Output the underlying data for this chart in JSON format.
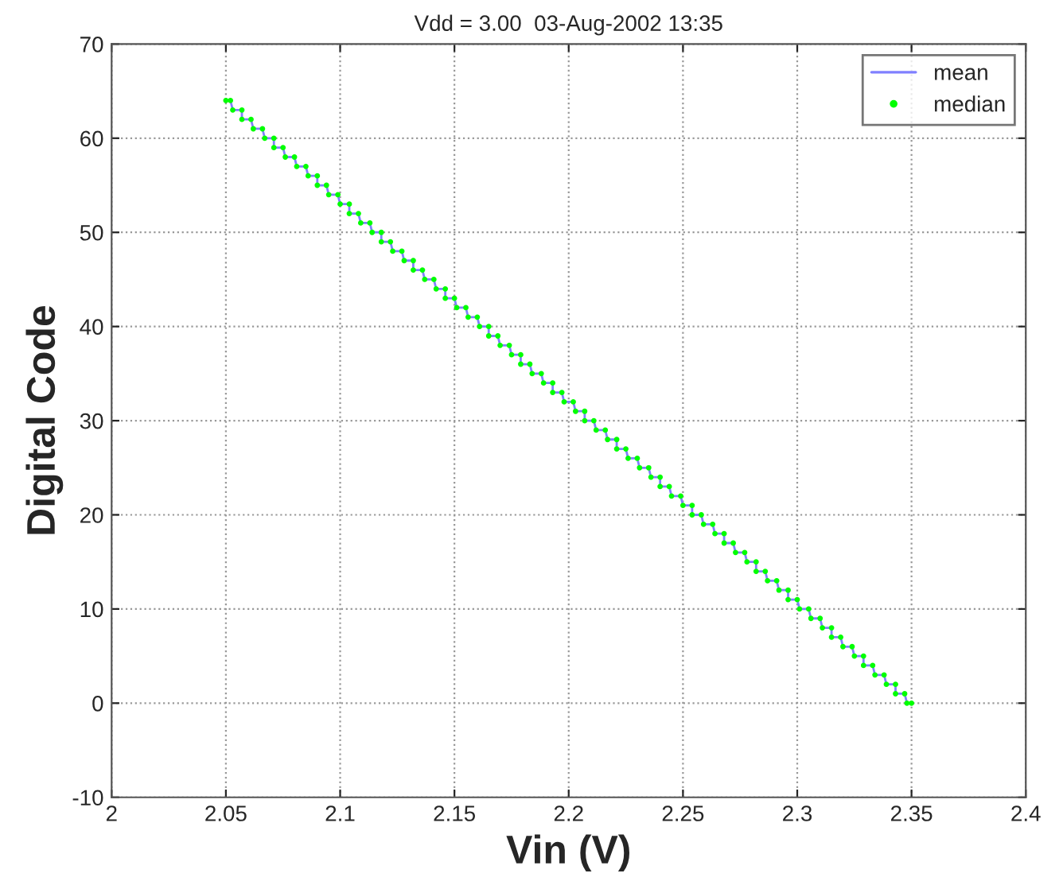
{
  "chart_data": {
    "type": "line",
    "title": "Vdd = 3.00  03-Aug-2002 13:35",
    "xlabel": "Vin (V)",
    "ylabel": "Digital Code",
    "x": [
      2.05,
      2.052,
      2.053,
      2.057,
      2.057,
      2.061,
      2.062,
      2.066,
      2.067,
      2.071,
      2.071,
      2.075,
      2.076,
      2.08,
      2.081,
      2.085,
      2.086,
      2.09,
      2.09,
      2.094,
      2.095,
      2.099,
      2.1,
      2.104,
      2.104,
      2.108,
      2.109,
      2.113,
      2.114,
      2.118,
      2.118,
      2.122,
      2.123,
      2.127,
      2.128,
      2.132,
      2.132,
      2.136,
      2.137,
      2.141,
      2.142,
      2.146,
      2.146,
      2.15,
      2.151,
      2.155,
      2.156,
      2.16,
      2.161,
      2.165,
      2.165,
      2.169,
      2.17,
      2.174,
      2.175,
      2.179,
      2.179,
      2.183,
      2.184,
      2.188,
      2.189,
      2.193,
      2.193,
      2.197,
      2.198,
      2.202,
      2.203,
      2.207,
      2.207,
      2.211,
      2.212,
      2.216,
      2.217,
      2.221,
      2.221,
      2.225,
      2.226,
      2.23,
      2.231,
      2.235,
      2.236,
      2.24,
      2.24,
      2.244,
      2.245,
      2.249,
      2.25,
      2.254,
      2.254,
      2.258,
      2.259,
      2.263,
      2.264,
      2.268,
      2.268,
      2.272,
      2.273,
      2.277,
      2.278,
      2.282,
      2.282,
      2.286,
      2.287,
      2.291,
      2.292,
      2.296,
      2.296,
      2.3,
      2.301,
      2.305,
      2.306,
      2.31,
      2.311,
      2.315,
      2.315,
      2.319,
      2.32,
      2.324,
      2.325,
      2.329,
      2.329,
      2.333,
      2.334,
      2.338,
      2.339,
      2.343,
      2.343,
      2.347,
      2.348,
      2.35
    ],
    "series": [
      {
        "name": "mean",
        "color": "#8080ff",
        "line_style": "solid",
        "values": [
          64,
          64,
          63,
          63,
          62,
          62,
          61,
          61,
          60,
          60,
          59,
          59,
          58,
          58,
          57,
          57,
          56,
          56,
          55,
          55,
          54,
          54,
          53,
          53,
          52,
          52,
          51,
          51,
          50,
          50,
          49,
          49,
          48,
          48,
          47,
          47,
          46,
          46,
          45,
          45,
          44,
          44,
          43,
          43,
          42,
          42,
          41,
          41,
          40,
          40,
          39,
          39,
          38,
          38,
          37,
          37,
          36,
          36,
          35,
          35,
          34,
          34,
          33,
          33,
          32,
          32,
          31,
          31,
          30,
          30,
          29,
          29,
          28,
          28,
          27,
          27,
          26,
          26,
          25,
          25,
          24,
          24,
          23,
          23,
          22,
          22,
          21,
          21,
          20,
          20,
          19,
          19,
          18,
          18,
          17,
          17,
          16,
          16,
          15,
          15,
          14,
          14,
          13,
          13,
          12,
          12,
          11,
          11,
          10,
          10,
          9,
          9,
          8,
          8,
          7,
          7,
          6,
          6,
          5,
          5,
          4,
          4,
          3,
          3,
          2,
          2,
          1,
          1,
          0,
          0
        ]
      },
      {
        "name": "median",
        "type": "scatter",
        "color": "#00ff00",
        "marker": "circle",
        "values": [
          64,
          64,
          63,
          63,
          62,
          62,
          61,
          61,
          60,
          60,
          59,
          59,
          58,
          58,
          57,
          57,
          56,
          56,
          55,
          55,
          54,
          54,
          53,
          53,
          52,
          52,
          51,
          51,
          50,
          50,
          49,
          49,
          48,
          48,
          47,
          47,
          46,
          46,
          45,
          45,
          44,
          44,
          43,
          43,
          42,
          42,
          41,
          41,
          40,
          40,
          39,
          39,
          38,
          38,
          37,
          37,
          36,
          36,
          35,
          35,
          34,
          34,
          33,
          33,
          32,
          32,
          31,
          31,
          30,
          30,
          29,
          29,
          28,
          28,
          27,
          27,
          26,
          26,
          25,
          25,
          24,
          24,
          23,
          23,
          22,
          22,
          21,
          21,
          20,
          20,
          19,
          19,
          18,
          18,
          17,
          17,
          16,
          16,
          15,
          15,
          14,
          14,
          13,
          13,
          12,
          12,
          11,
          11,
          10,
          10,
          9,
          9,
          8,
          8,
          7,
          7,
          6,
          6,
          5,
          5,
          4,
          4,
          3,
          3,
          2,
          2,
          1,
          1,
          0,
          0
        ]
      }
    ],
    "xlim": [
      2,
      2.4
    ],
    "xticks": [
      2,
      2.05,
      2.1,
      2.15,
      2.2,
      2.25,
      2.3,
      2.35,
      2.4
    ],
    "ylim": [
      -10,
      70
    ],
    "yticks": [
      -10,
      0,
      10,
      20,
      30,
      40,
      50,
      60,
      70
    ],
    "grid": true,
    "legend": "top right"
  }
}
